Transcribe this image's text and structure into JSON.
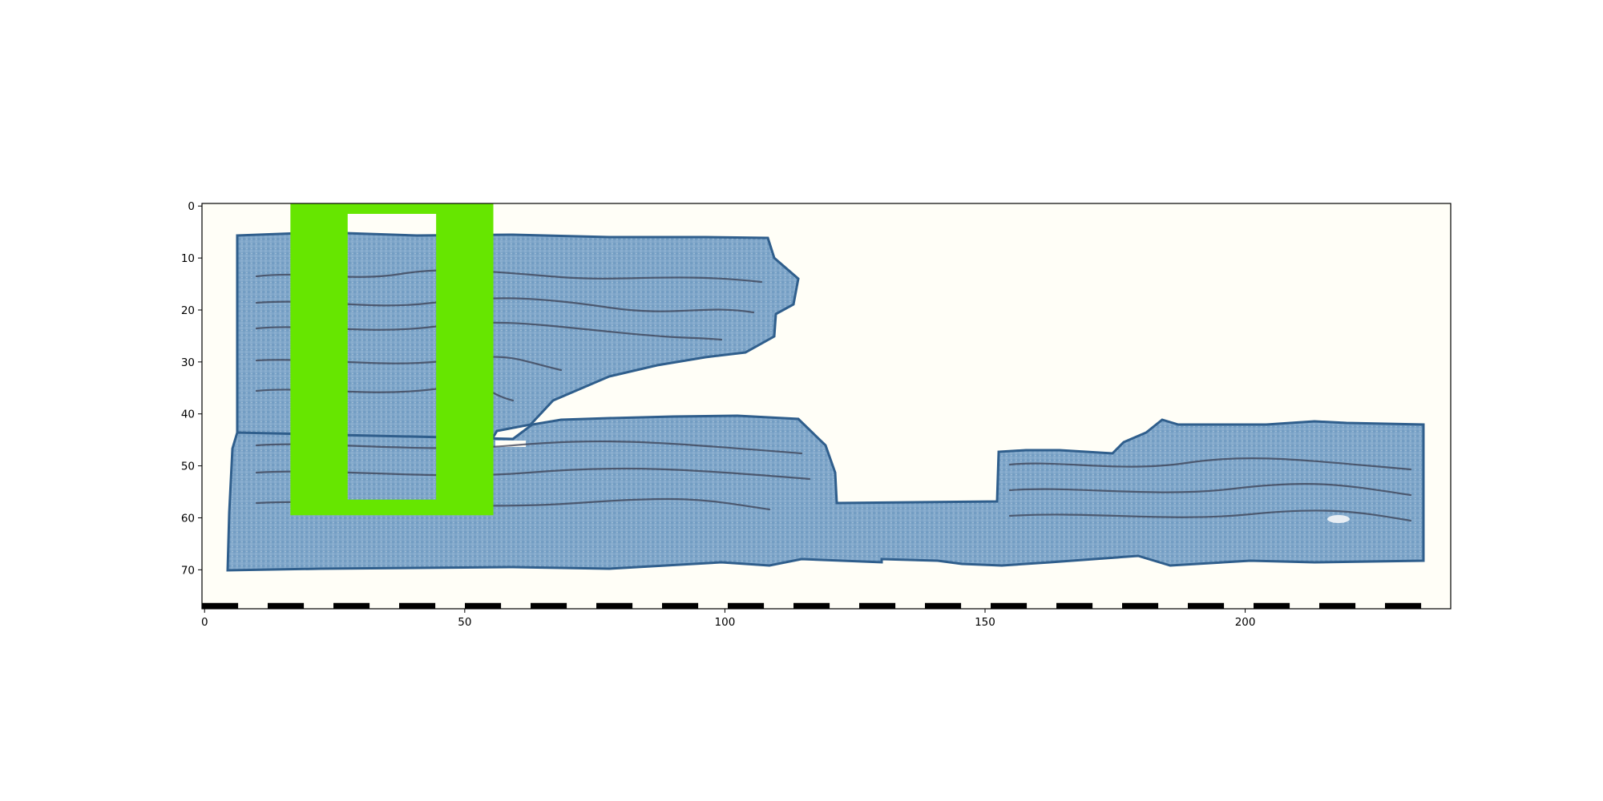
{
  "chart_data": {
    "type": "image",
    "title": "",
    "xlabel": "",
    "ylabel": "",
    "xlim": [
      -0.5,
      239.5
    ],
    "ylim": [
      77.5,
      -0.5
    ],
    "x_ticks": [
      0,
      50,
      100,
      150,
      200
    ],
    "y_ticks": [
      0,
      10,
      20,
      30,
      40,
      50,
      60,
      70
    ],
    "image_subject": "blue-tinted papyrus fragment with faint handwritten lines",
    "overlay_box": {
      "color": "#66e600",
      "outer": {
        "x0": 16.5,
        "x1": 55.5,
        "y0": -0.5,
        "y1": 59.5
      },
      "inner": {
        "x0": 27.5,
        "x1": 44.5,
        "y0": 1.5,
        "y1": 56.5
      }
    },
    "scale_bar": {
      "y": 77,
      "segment_count": 19,
      "colors": [
        "#000000",
        "#ffffff"
      ]
    },
    "colors": {
      "background": "#fffef7",
      "papyrus_fill": "#7fa6c9",
      "papyrus_edge": "#2f5e8c",
      "ink": "#3a3f52",
      "axes": "#000000"
    }
  }
}
